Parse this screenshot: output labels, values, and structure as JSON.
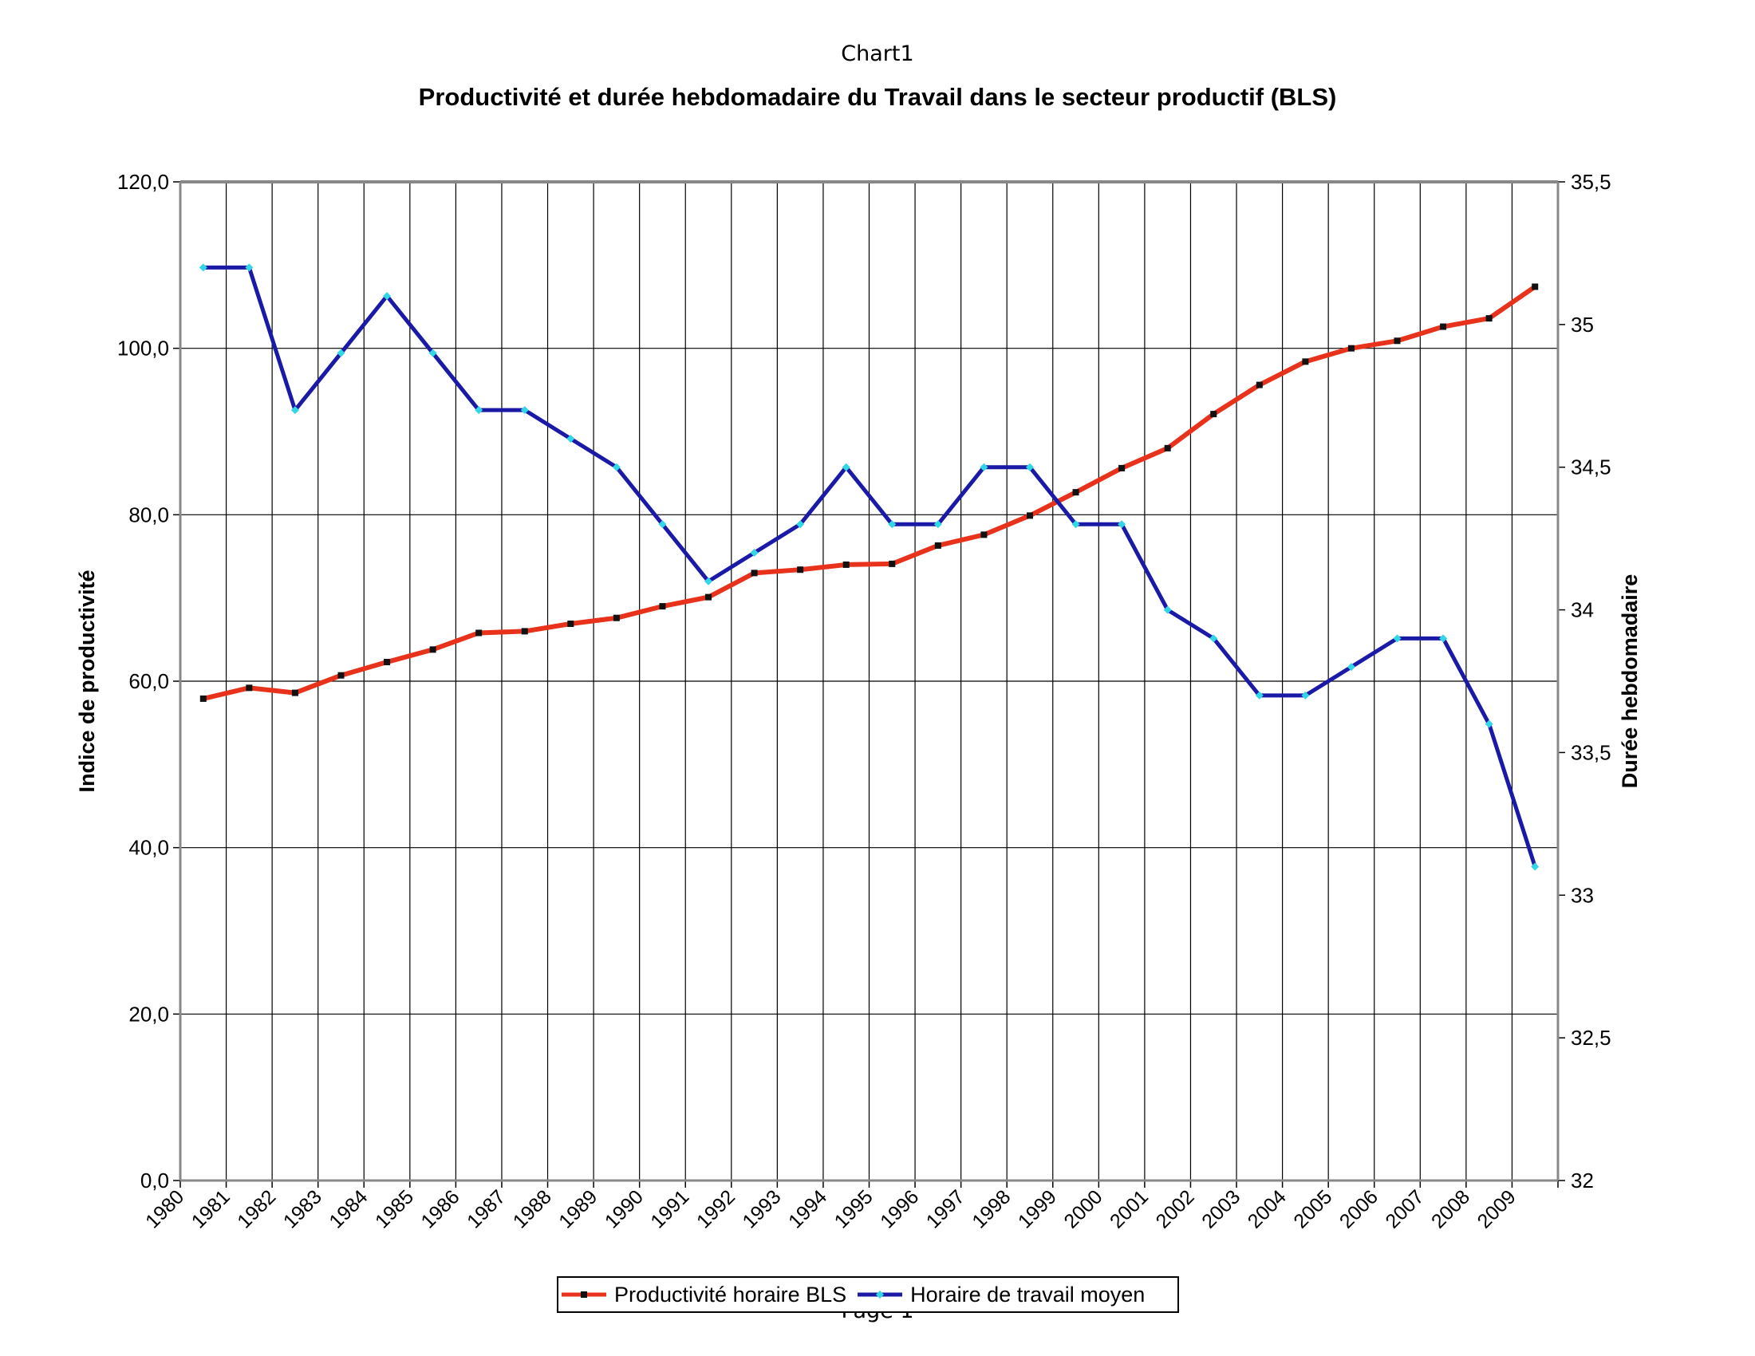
{
  "page": {
    "header": "Chart1",
    "footer": "Page 1"
  },
  "chart_data": {
    "type": "line",
    "title": "Productivité et durée hebdomadaire du  Travail dans le secteur productif (BLS)",
    "xlabel": "",
    "ylabel": "Indice de productivité",
    "y2label": "Durée hebdomadaire",
    "categories": [
      "1980",
      "1981",
      "1982",
      "1983",
      "1984",
      "1985",
      "1986",
      "1987",
      "1988",
      "1989",
      "1990",
      "1991",
      "1992",
      "1993",
      "1994",
      "1995",
      "1996",
      "1997",
      "1998",
      "1999",
      "2000",
      "2001",
      "2002",
      "2003",
      "2004",
      "2005",
      "2006",
      "2007",
      "2008",
      "2009"
    ],
    "ylim": [
      0,
      120
    ],
    "y_ticks": [
      "0,0",
      "20,0",
      "40,0",
      "60,0",
      "80,0",
      "100,0",
      "120,0"
    ],
    "y2lim": [
      32,
      35.5
    ],
    "y2_ticks": [
      "32",
      "32,5",
      "33",
      "33,5",
      "34",
      "34,5",
      "35",
      "35,5"
    ],
    "grid": true,
    "legend_position": "bottom",
    "series": [
      {
        "name": "Productivité horaire BLS",
        "axis": "left",
        "color": "#e8321c",
        "marker_color": "#111111",
        "values": [
          57.9,
          59.2,
          58.6,
          60.7,
          62.3,
          63.8,
          65.8,
          66.0,
          66.9,
          67.6,
          69.0,
          70.1,
          73.0,
          73.4,
          74.0,
          74.1,
          76.3,
          77.6,
          79.9,
          82.7,
          85.6,
          88.0,
          92.1,
          95.6,
          98.4,
          100.0,
          100.9,
          102.6,
          103.6,
          107.4
        ]
      },
      {
        "name": "Horaire de travail moyen",
        "axis": "right",
        "color": "#1a1aa6",
        "marker_color": "#33d6e6",
        "values": [
          35.2,
          35.2,
          34.7,
          34.9,
          35.1,
          34.9,
          34.7,
          34.7,
          34.6,
          34.5,
          34.3,
          34.1,
          34.2,
          34.3,
          34.5,
          34.3,
          34.3,
          34.5,
          34.5,
          34.3,
          34.3,
          34.0,
          33.9,
          33.7,
          33.7,
          33.8,
          33.9,
          33.9,
          33.6,
          33.1
        ]
      }
    ]
  }
}
